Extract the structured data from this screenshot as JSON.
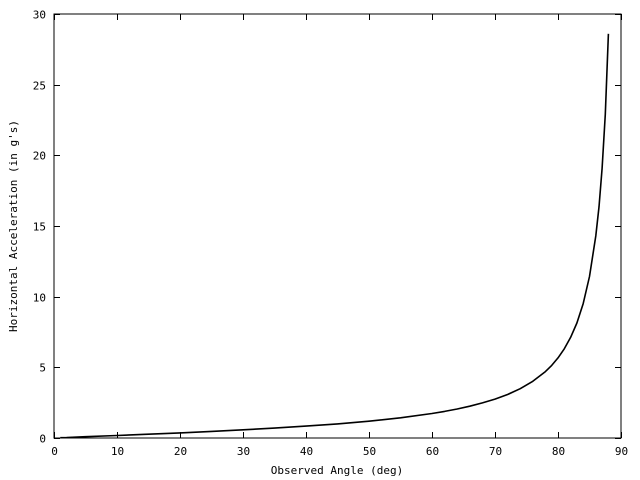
{
  "chart_data": {
    "type": "line",
    "title": "",
    "xlabel": "Observed Angle (deg)",
    "ylabel": "Horizontal Acceleration (in g's)",
    "xlim": [
      0,
      90
    ],
    "ylim": [
      0,
      30
    ],
    "x_ticks": [
      0,
      10,
      20,
      30,
      40,
      50,
      60,
      70,
      80,
      90
    ],
    "y_ticks": [
      0,
      5,
      10,
      15,
      20,
      25,
      30
    ],
    "grid": false,
    "legend": "none",
    "line_color": "#000000",
    "series": [
      {
        "x": [
          1,
          2,
          5,
          10,
          15,
          20,
          25,
          30,
          35,
          40,
          45,
          50,
          55,
          60,
          62,
          64,
          66,
          68,
          70,
          72,
          74,
          76,
          78,
          79,
          80,
          81,
          82,
          83,
          84,
          85,
          86,
          86.5,
          87,
          87.5,
          88
        ],
        "values": [
          0.02,
          0.03,
          0.09,
          0.18,
          0.27,
          0.36,
          0.47,
          0.58,
          0.7,
          0.84,
          1.0,
          1.19,
          1.43,
          1.73,
          1.88,
          2.05,
          2.25,
          2.48,
          2.75,
          3.08,
          3.49,
          4.01,
          4.7,
          5.14,
          5.67,
          6.31,
          7.12,
          8.14,
          9.51,
          11.43,
          14.3,
          16.35,
          19.08,
          22.9,
          28.6
        ]
      }
    ]
  }
}
